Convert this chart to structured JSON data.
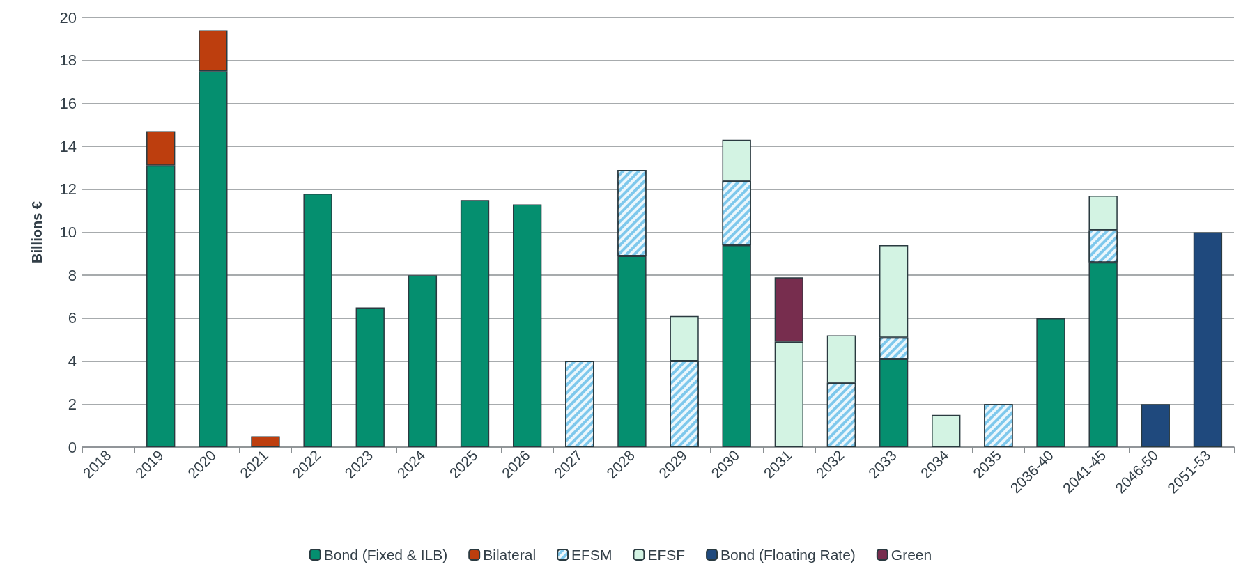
{
  "chart_data": {
    "type": "bar",
    "stacked": true,
    "ylabel": "Billions €",
    "ylim": [
      0,
      20
    ],
    "yticks": [
      0,
      2,
      4,
      6,
      8,
      10,
      12,
      14,
      16,
      18,
      20
    ],
    "grid": "y",
    "legend": "bottom",
    "categories": [
      "2018",
      "2019",
      "2020",
      "2021",
      "2022",
      "2023",
      "2024",
      "2025",
      "2026",
      "2027",
      "2028",
      "2029",
      "2030",
      "2031",
      "2032",
      "2033",
      "2034",
      "2035",
      "2036-40",
      "2041-45",
      "2046-50",
      "2051-53"
    ],
    "series": [
      {
        "name": "Bond (Fixed & ILB)",
        "color": "#058f6f",
        "values": [
          null,
          13.1,
          17.5,
          null,
          11.8,
          6.5,
          8.0,
          11.5,
          11.3,
          null,
          8.9,
          null,
          9.4,
          null,
          null,
          4.1,
          null,
          null,
          6.0,
          8.6,
          null,
          null
        ]
      },
      {
        "name": "Bilateral",
        "color": "#bd3e0e",
        "values": [
          null,
          1.6,
          1.9,
          0.5,
          null,
          null,
          null,
          null,
          null,
          null,
          null,
          null,
          null,
          null,
          null,
          null,
          null,
          null,
          null,
          null,
          null,
          null
        ]
      },
      {
        "name": "EFSM",
        "color": "#7ec8ec",
        "values": [
          null,
          null,
          null,
          null,
          null,
          null,
          null,
          null,
          null,
          4.0,
          4.0,
          4.0,
          3.0,
          null,
          3.0,
          1.0,
          null,
          2.0,
          null,
          1.5,
          null,
          null
        ]
      },
      {
        "name": "EFSF",
        "color": "#d3f3e3",
        "values": [
          null,
          null,
          null,
          null,
          null,
          null,
          null,
          null,
          null,
          null,
          null,
          2.1,
          1.9,
          4.9,
          2.2,
          4.3,
          1.5,
          null,
          null,
          1.6,
          null,
          null
        ]
      },
      {
        "name": "Bond (Floating Rate)",
        "color": "#1f497d",
        "values": [
          null,
          null,
          null,
          null,
          null,
          null,
          null,
          null,
          null,
          null,
          null,
          null,
          null,
          null,
          null,
          null,
          null,
          null,
          null,
          null,
          2.0,
          10.0
        ]
      },
      {
        "name": "Green",
        "color": "#772d4e",
        "values": [
          null,
          null,
          null,
          null,
          null,
          null,
          null,
          null,
          null,
          null,
          null,
          null,
          null,
          3.0,
          null,
          null,
          null,
          null,
          null,
          null,
          null,
          null
        ]
      }
    ]
  }
}
